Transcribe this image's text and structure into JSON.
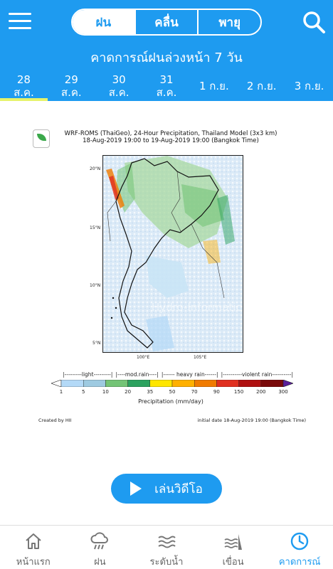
{
  "header": {
    "tabs": [
      {
        "label": "ฝน",
        "active": true
      },
      {
        "label": "คลื่น",
        "active": false
      },
      {
        "label": "พายุ",
        "active": false
      }
    ],
    "title": "คาดการณ์ฝนล่วงหน้า 7 วัน",
    "dates": [
      {
        "day": "28",
        "month": "ส.ค.",
        "active": true
      },
      {
        "day": "29",
        "month": "ส.ค."
      },
      {
        "day": "30",
        "month": "ส.ค."
      },
      {
        "day": "31",
        "month": "ส.ค."
      },
      {
        "day": "1 ก.ย.",
        "month": ""
      },
      {
        "day": "2 ก.ย.",
        "month": ""
      },
      {
        "day": "3 ก.ย.",
        "month": ""
      }
    ],
    "menu_icon": "hamburger-menu-icon",
    "search_icon": "search-icon",
    "accent_color": "#1e9bf0"
  },
  "figure": {
    "title_line1": "WRF-ROMS (ThaiGeo), 24-Hour Precipitation, Thailand Model (3x3 km)",
    "title_line2": "18-Aug-2019 19:00 to 19-Aug-2019 19:00 (Bangkok Time)",
    "watermark": "Hydro-Informatics Institute",
    "lat_ticks": [
      "20°N",
      "15°N",
      "10°N",
      "5°N"
    ],
    "lon_ticks": [
      "100°E",
      "105°E"
    ],
    "categories": [
      "|---------light---------|",
      "|----mod.rain----|",
      "|------ heavy rain------|",
      "|----------violent rain----------|"
    ],
    "colorbar_labels": [
      "1",
      "5",
      "10",
      "20",
      "35",
      "50",
      "70",
      "90",
      "150",
      "200",
      "300"
    ],
    "colorbar_colors": [
      "#ffffff",
      "#b3d9f7",
      "#9ecae1",
      "#74c476",
      "#2ca25f",
      "#ffe600",
      "#ffb000",
      "#f07b00",
      "#e03020",
      "#b01010",
      "#7a0a0a",
      "#5a1f9a"
    ],
    "colorbar_title": "Precipitation (mm/day)",
    "created_by": "Created by HII",
    "initial_date": "initial date 18-Aug-2019 19:00 (Bangkok Time)"
  },
  "play_button": {
    "label": "เล่นวิดีโอ"
  },
  "bottom_nav": [
    {
      "label": "หน้าแรก",
      "icon": "home-icon"
    },
    {
      "label": "ฝน",
      "icon": "rain-cloud-icon"
    },
    {
      "label": "ระดับน้ำ",
      "icon": "water-level-icon"
    },
    {
      "label": "เขื่อน",
      "icon": "dam-icon"
    },
    {
      "label": "คาดการณ์",
      "icon": "clock-icon",
      "active": true
    }
  ]
}
